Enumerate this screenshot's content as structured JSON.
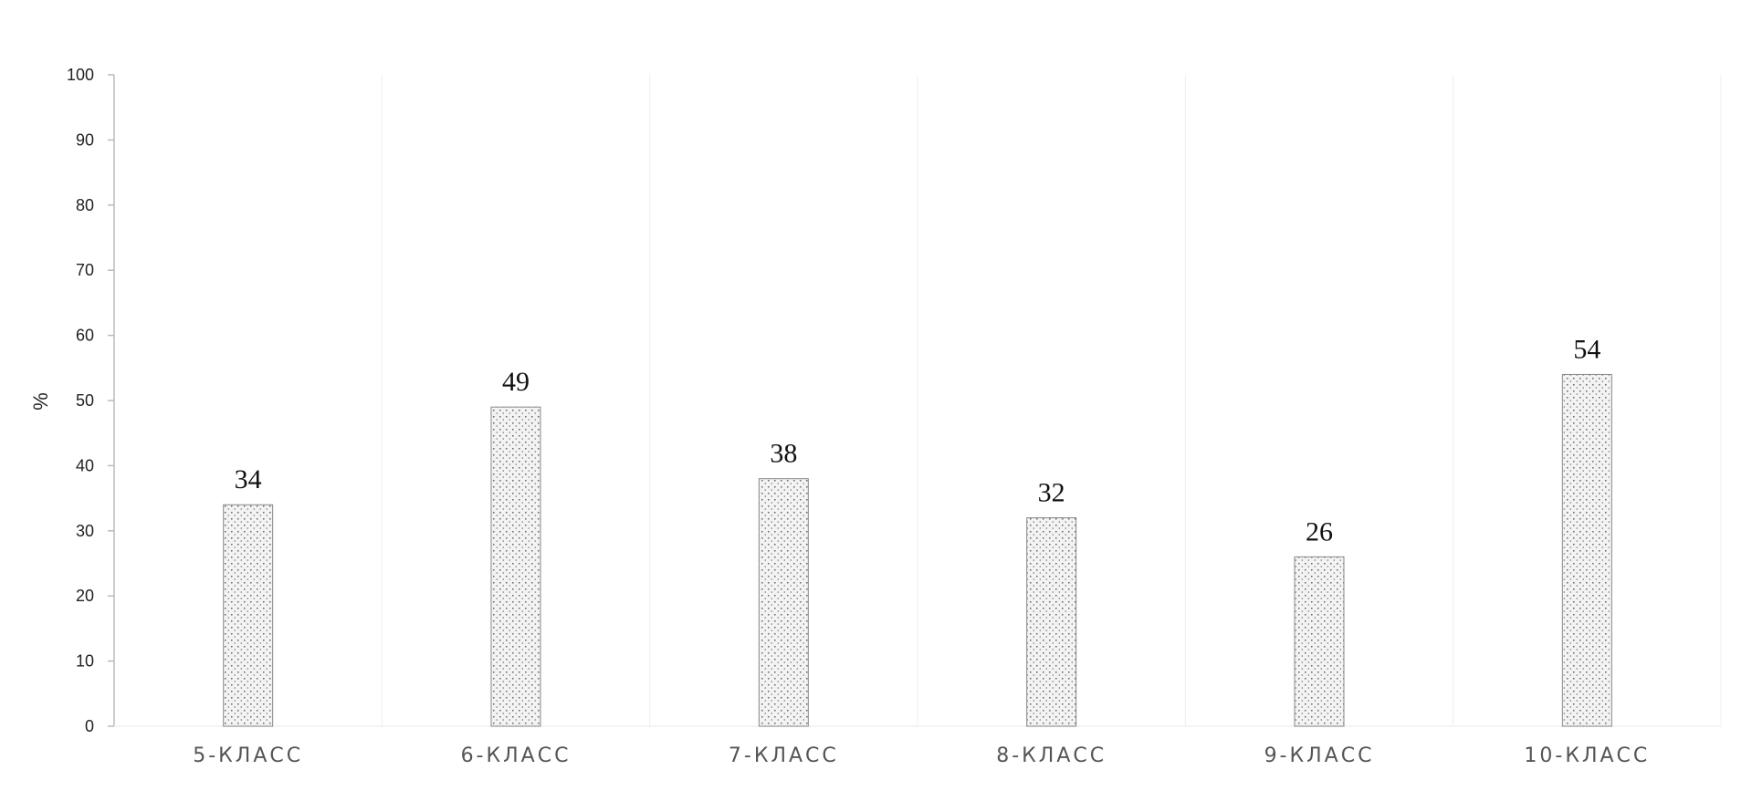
{
  "chart_data": {
    "type": "bar",
    "title": "",
    "xlabel": "",
    "ylabel": "%",
    "ylim": [
      0,
      100
    ],
    "yticks": [
      0,
      10,
      20,
      30,
      40,
      50,
      60,
      70,
      80,
      90,
      100
    ],
    "categories": [
      "5-КЛАСС",
      "6-КЛАСС",
      "7-КЛАСС",
      "8-КЛАСС",
      "9-КЛАСС",
      "10-КЛАСС"
    ],
    "values": [
      34,
      49,
      38,
      32,
      26,
      54
    ],
    "grid": true,
    "legend": "none",
    "bar_fill": "dotted",
    "colors": {
      "bar_fill": "#f2f2f2",
      "bar_edge": "#888888",
      "dots": "#666666",
      "axis": "#bbbbbb",
      "grid": "#f0f0f0"
    }
  }
}
